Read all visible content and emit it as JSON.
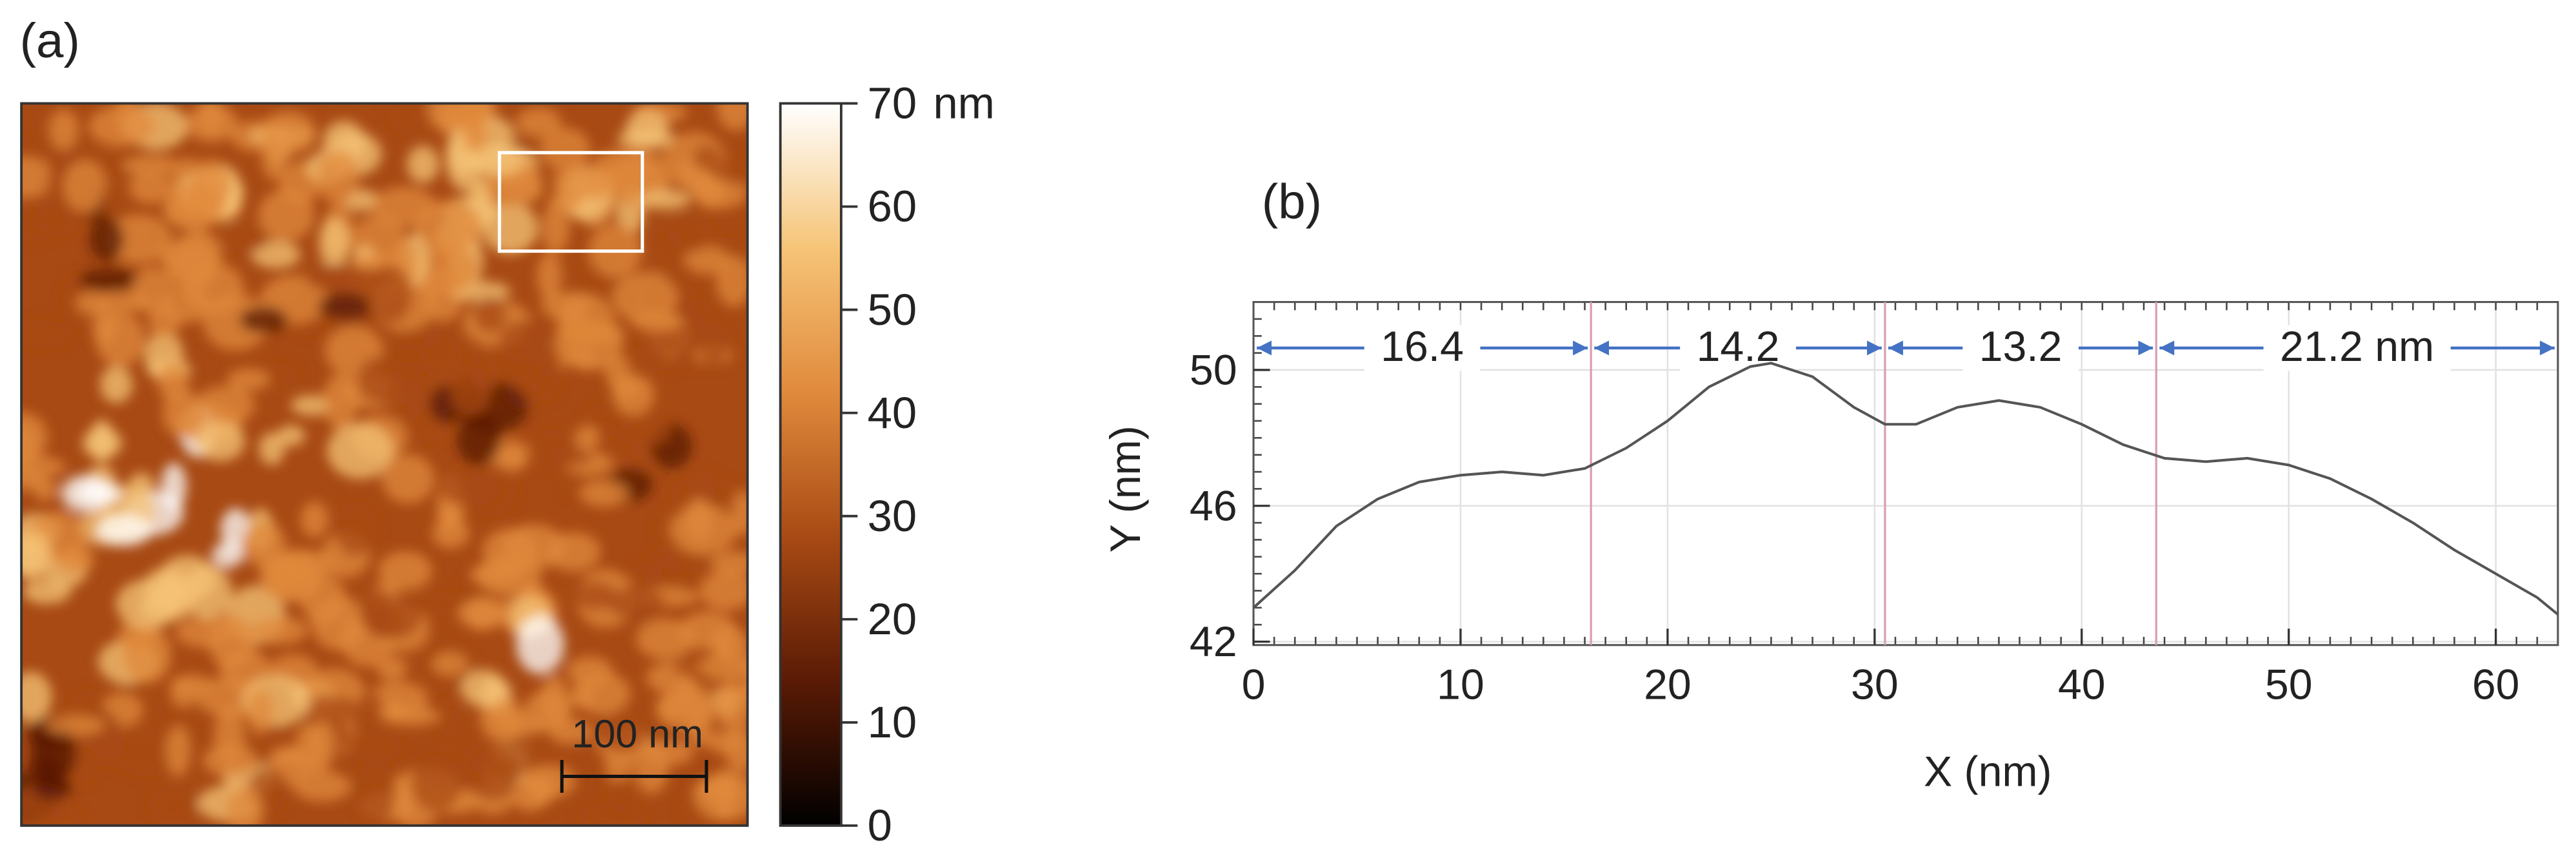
{
  "chart_data": [
    {
      "type": "heatmap",
      "label": "(a)",
      "scale_bar": "100 nm",
      "colorbar": {
        "lim": [
          0,
          70
        ],
        "ticks": [
          0,
          10,
          20,
          30,
          40,
          50,
          60,
          70
        ],
        "unit": "nm",
        "colors": [
          "#000000",
          "#5a1a05",
          "#a84a14",
          "#e08a3c",
          "#f6c477",
          "#ffffff"
        ]
      }
    },
    {
      "type": "line",
      "label": "(b)",
      "x": [
        0,
        2,
        4,
        6,
        8,
        10,
        12,
        14,
        16,
        18,
        20,
        22,
        24,
        25,
        27,
        29,
        30.5,
        32,
        34,
        36,
        38,
        40,
        42,
        44,
        46,
        48,
        50,
        52,
        54,
        56,
        58,
        60,
        62,
        63
      ],
      "values": [
        43.0,
        44.1,
        45.4,
        46.2,
        46.7,
        46.9,
        47.0,
        46.9,
        47.1,
        47.7,
        48.5,
        49.5,
        50.1,
        50.2,
        49.8,
        48.9,
        48.4,
        48.4,
        48.9,
        49.1,
        48.9,
        48.4,
        47.8,
        47.4,
        47.3,
        47.4,
        47.2,
        46.8,
        46.2,
        45.5,
        44.7,
        44.0,
        43.3,
        42.8
      ],
      "color": "#555555",
      "xlim": [
        0,
        63
      ],
      "ylim": [
        41.9,
        52
      ],
      "xticks": [
        0,
        10,
        20,
        30,
        40,
        50,
        60
      ],
      "yticks": [
        42,
        46,
        50
      ],
      "xlabel": "X (nm)",
      "ylabel": "Y (nm)",
      "grid": true,
      "vlines": [
        16.3,
        30.5,
        43.6
      ],
      "vline_color": "#d9a0b4",
      "annotations": [
        "16.4",
        "14.2",
        "13.2",
        "21.2 nm"
      ],
      "annotation_color": "#4472c4"
    }
  ]
}
